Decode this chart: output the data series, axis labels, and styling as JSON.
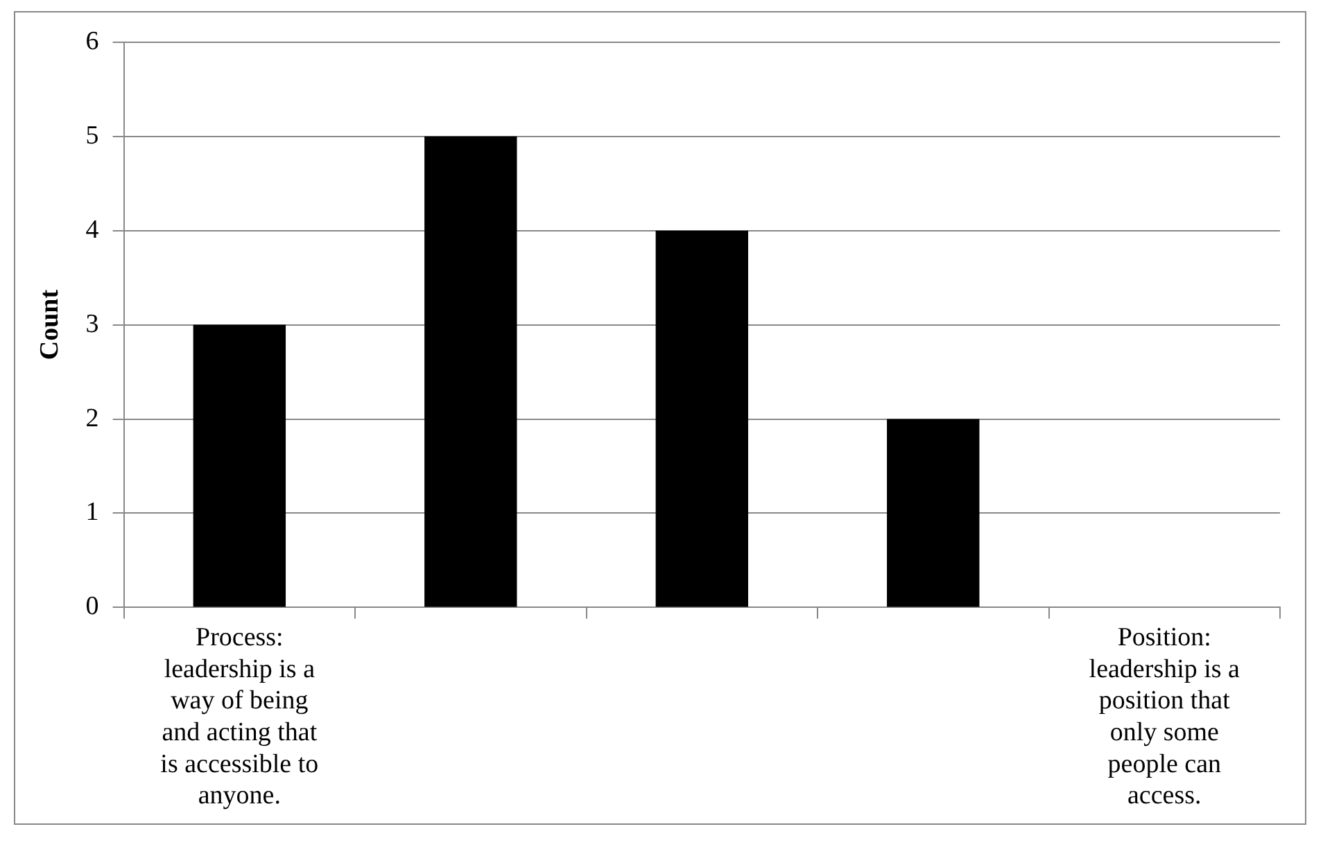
{
  "chart_data": {
    "type": "bar",
    "ylabel": "Count",
    "categories": [
      "Process: leadership is a way of being and acting that is accessible to anyone.",
      null,
      null,
      null,
      "Position: leadership is a position that only some people can access."
    ],
    "values": [
      3,
      5,
      4,
      2,
      0
    ],
    "color": "#000000",
    "ylim": [
      0,
      6
    ],
    "yticks": [
      0,
      1,
      2,
      3,
      4,
      5,
      6
    ],
    "grid": "y",
    "legend": false
  }
}
